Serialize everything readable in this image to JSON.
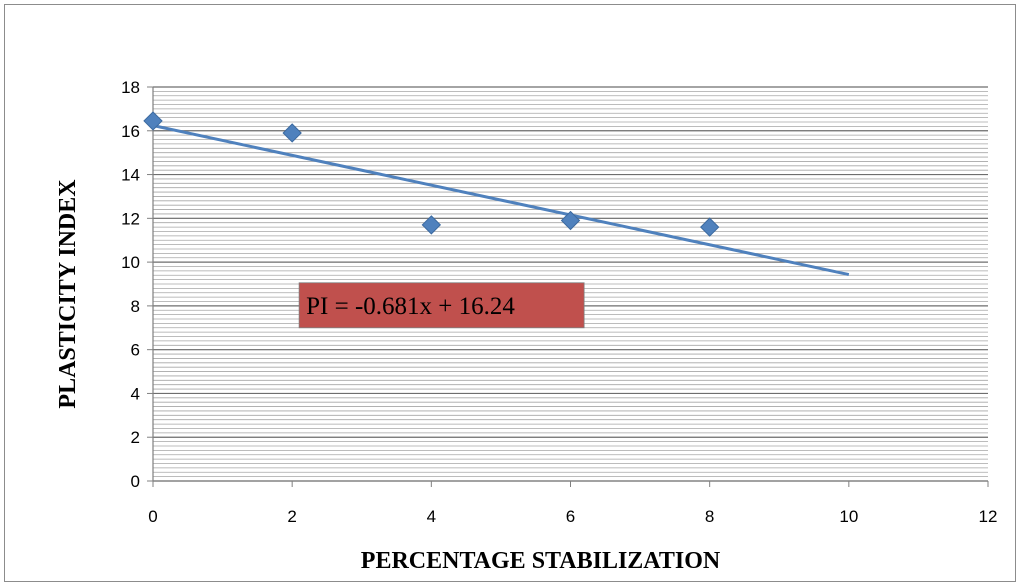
{
  "chart_data": {
    "type": "scatter",
    "title": "",
    "xlabel": "PERCENTAGE STABILIZATION",
    "ylabel": "PLASTICITY INDEX",
    "xlim": [
      0,
      12
    ],
    "ylim": [
      0,
      18
    ],
    "x_ticks": [
      "0",
      "2",
      "4",
      "6",
      "8",
      "10",
      "12"
    ],
    "y_ticks": [
      "0",
      "2",
      "4",
      "6",
      "8",
      "10",
      "12",
      "14",
      "16",
      "18"
    ],
    "grid": true,
    "minor_grid": true,
    "legend": "none",
    "series": [
      {
        "marker": "diamond",
        "color": "#4f81bd",
        "points": [
          {
            "x": 0,
            "y": 16.45
          },
          {
            "x": 2,
            "y": 15.9
          },
          {
            "x": 4,
            "y": 11.7
          },
          {
            "x": 6,
            "y": 11.9
          },
          {
            "x": 8,
            "y": 11.6
          }
        ]
      }
    ],
    "trendline": {
      "color": "#4f81bd",
      "slope": -0.681,
      "intercept": 16.24,
      "x_range": [
        0,
        10
      ]
    },
    "annotation": {
      "text": "PI = -0.681x + 16.24",
      "background": "#c0504d",
      "anchor_x": 2.1,
      "anchor_y": 7.0
    }
  }
}
